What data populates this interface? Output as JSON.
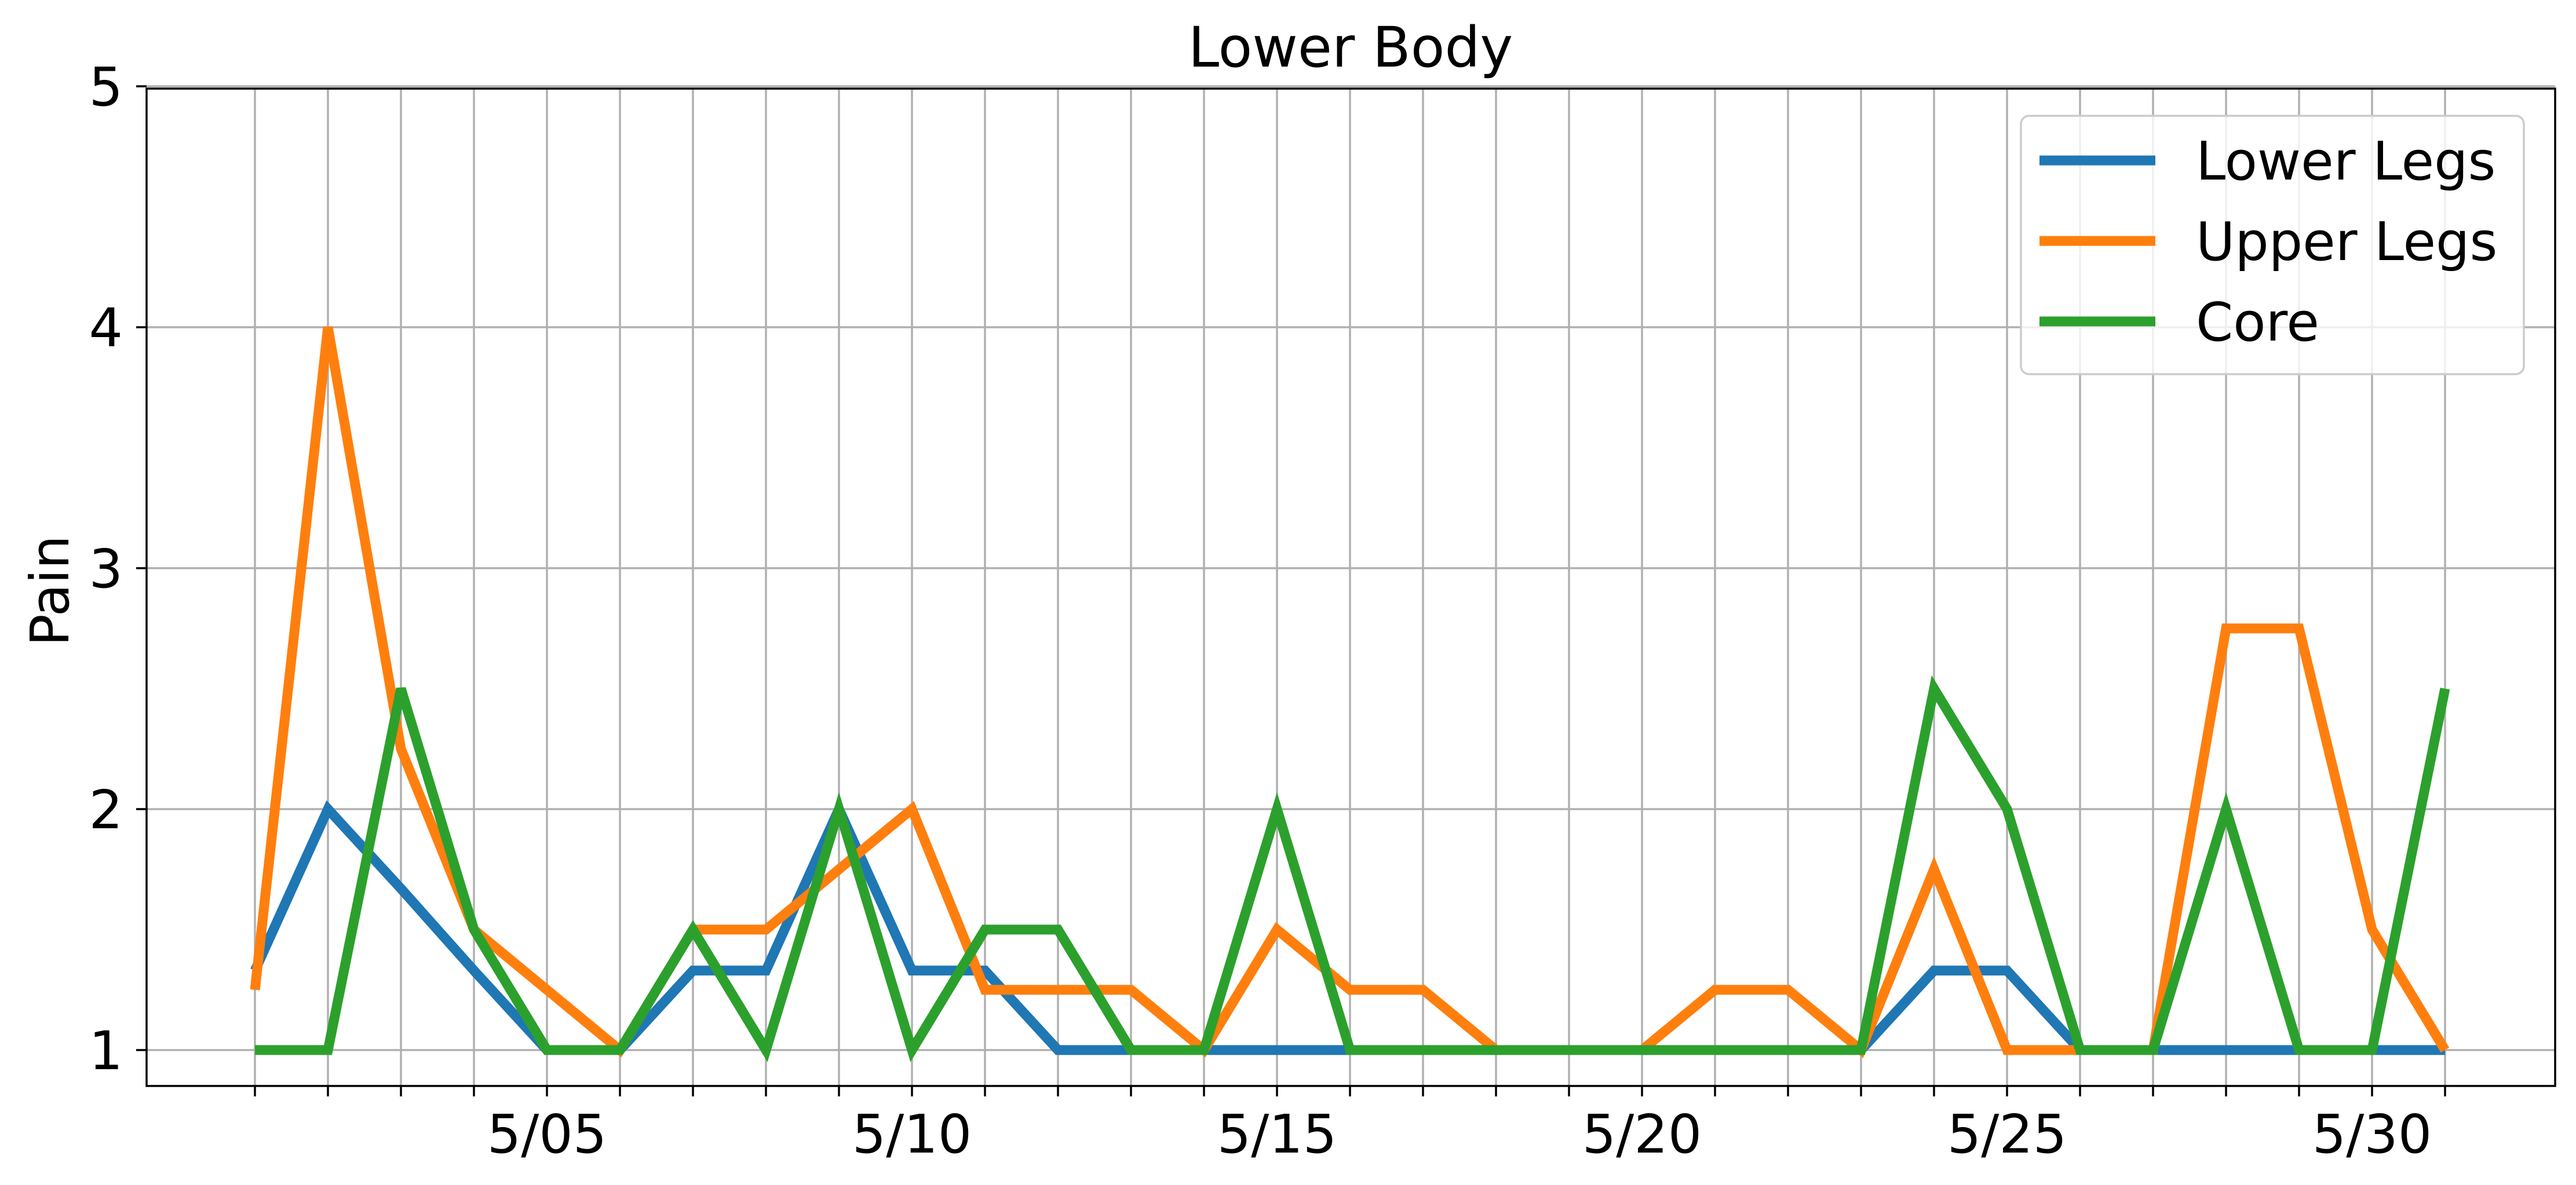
{
  "chart_data": {
    "type": "line",
    "title": "Lower Body",
    "xlabel": "",
    "ylabel": "Pain",
    "x": [
      "5/01",
      "5/02",
      "5/03",
      "5/04",
      "5/05",
      "5/06",
      "5/07",
      "5/08",
      "5/09",
      "5/10",
      "5/11",
      "5/12",
      "5/13",
      "5/14",
      "5/15",
      "5/16",
      "5/17",
      "5/18",
      "5/19",
      "5/20",
      "5/21",
      "5/22",
      "5/23",
      "5/24",
      "5/25",
      "5/26",
      "5/27",
      "5/28",
      "5/29",
      "5/30",
      "5/31"
    ],
    "x_tick_labels": [
      "5/05",
      "5/10",
      "5/15",
      "5/20",
      "5/25",
      "5/30"
    ],
    "y_ticks": [
      "1",
      "2",
      "3",
      "4",
      "5"
    ],
    "ylim": [
      1,
      5
    ],
    "grid": true,
    "legend_position": "upper right",
    "series": [
      {
        "name": "Lower Legs",
        "color": "#1f77b4",
        "values": [
          1.33,
          2,
          1.67,
          1.33,
          1,
          1,
          1.33,
          1.33,
          2,
          1.33,
          1.33,
          1,
          1,
          1,
          1,
          1,
          1,
          1,
          1,
          1,
          1,
          1,
          1,
          1.33,
          1.33,
          1,
          1,
          1,
          1,
          1,
          1
        ]
      },
      {
        "name": "Upper Legs",
        "color": "#ff7f0e",
        "values": [
          1.25,
          4,
          2.25,
          1.5,
          1.25,
          1,
          1.5,
          1.5,
          1.75,
          2,
          1.25,
          1.25,
          1.25,
          1,
          1.5,
          1.25,
          1.25,
          1,
          1,
          1,
          1.25,
          1.25,
          1,
          1.75,
          1,
          1,
          1,
          2.75,
          2.75,
          1.5,
          1
        ]
      },
      {
        "name": "Core",
        "color": "#2ca02c",
        "values": [
          1,
          1,
          2.5,
          1.5,
          1,
          1,
          1.5,
          1,
          2,
          1,
          1.5,
          1.5,
          1,
          1,
          2,
          1,
          1,
          1,
          1,
          1,
          1,
          1,
          1,
          2.5,
          2,
          1,
          1,
          2,
          1,
          1,
          2.5
        ]
      }
    ]
  }
}
